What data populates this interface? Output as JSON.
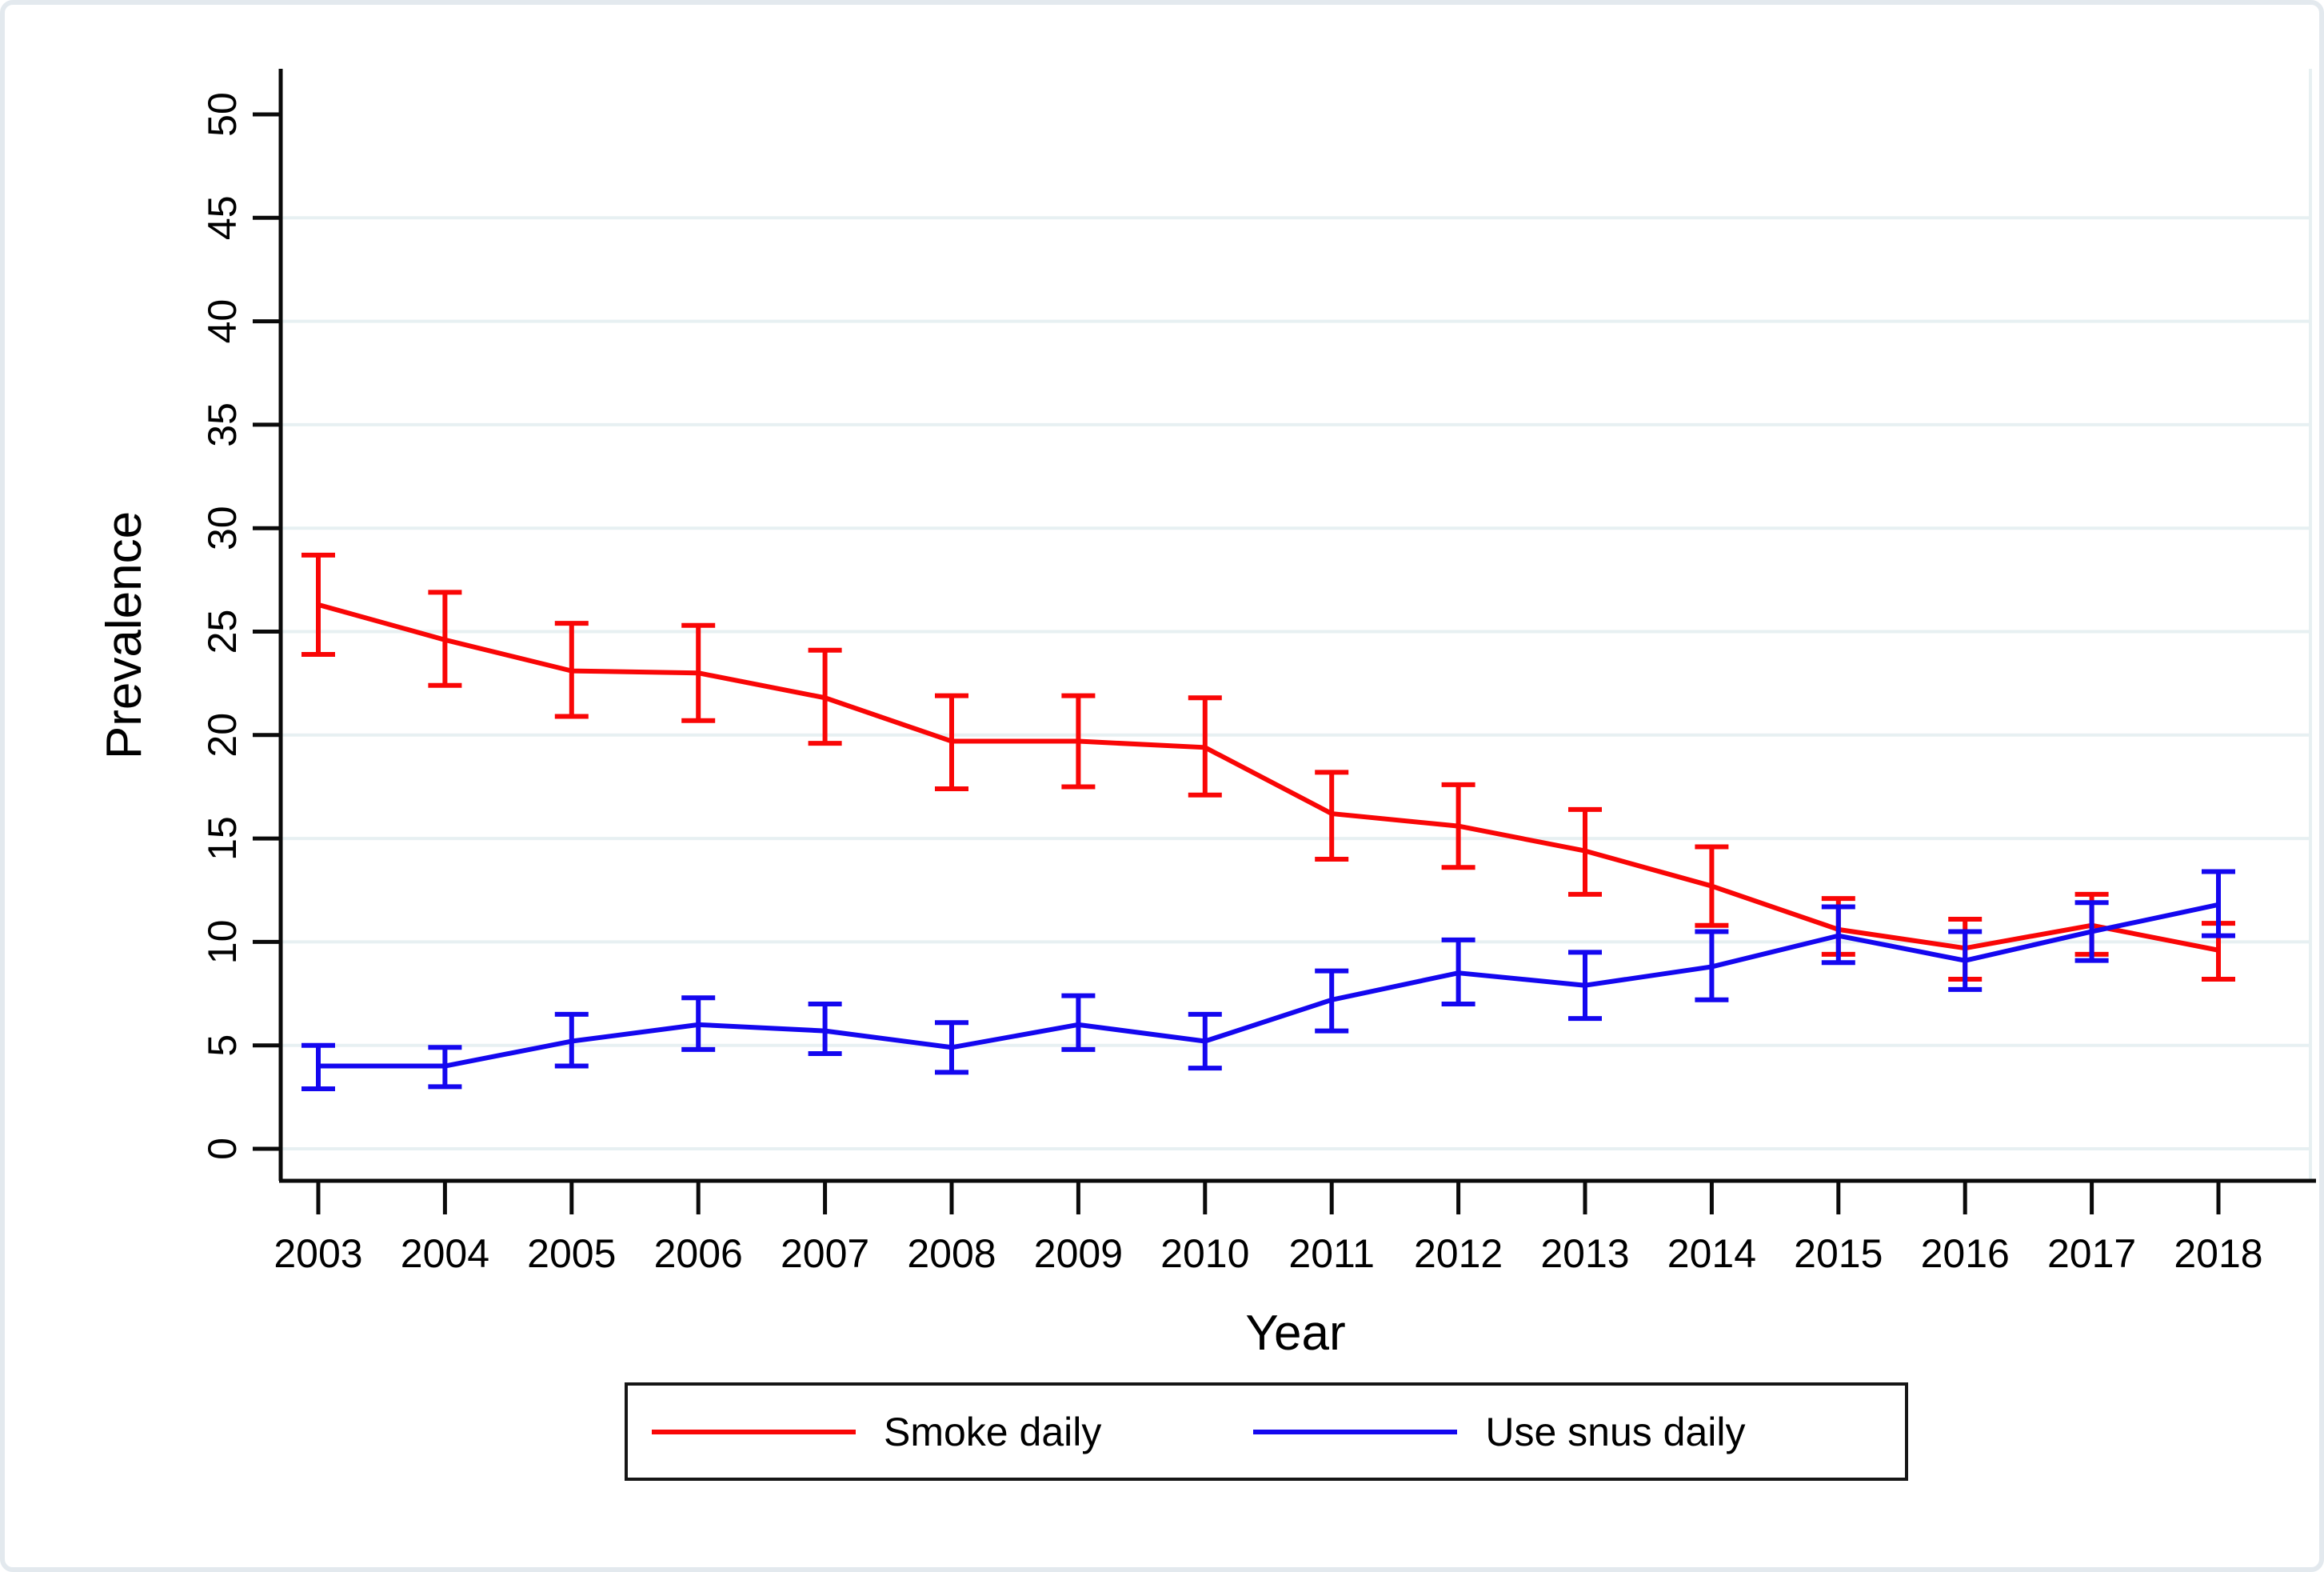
{
  "figure": {
    "y_axis_title": "Prevalence",
    "x_axis_title": "Year",
    "background_color": "#ffffff",
    "frame_color": "#e3e9ee",
    "axis_color": "#0a0a0a",
    "grid_color": "#e7f0f2",
    "text_color": "#000000"
  },
  "legend": {
    "items": [
      {
        "label": "Smoke daily",
        "color": "#f90606"
      },
      {
        "label": "Use snus daily",
        "color": "#1407ef"
      }
    ]
  },
  "chart_data": {
    "type": "line",
    "title": "",
    "xlabel": "Year",
    "ylabel": "Prevalence",
    "x": [
      2003,
      2004,
      2005,
      2006,
      2007,
      2008,
      2009,
      2010,
      2011,
      2012,
      2013,
      2014,
      2015,
      2016,
      2017,
      2018
    ],
    "ylim": [
      0,
      50
    ],
    "y_ticks": [
      0,
      5,
      10,
      15,
      20,
      25,
      30,
      35,
      40,
      45,
      50
    ],
    "grid_ticks": [
      0,
      5,
      10,
      15,
      20,
      25,
      30,
      35,
      40,
      45
    ],
    "grid": true,
    "error_bars": true,
    "legend_position": "bottom",
    "y_tick_labels_rotated": true,
    "series": [
      {
        "name": "Smoke daily",
        "color": "#f90606",
        "values": [
          26.3,
          24.6,
          23.1,
          23.0,
          21.8,
          19.7,
          19.7,
          19.4,
          16.2,
          15.6,
          14.4,
          12.7,
          10.6,
          9.7,
          10.8,
          9.6
        ],
        "ci_low": [
          23.9,
          22.4,
          20.9,
          20.7,
          19.6,
          17.4,
          17.5,
          17.1,
          14.0,
          13.6,
          12.3,
          10.8,
          9.4,
          8.2,
          9.4,
          8.2
        ],
        "ci_high": [
          28.7,
          26.9,
          25.4,
          25.3,
          24.1,
          21.9,
          21.9,
          21.8,
          18.2,
          17.6,
          16.4,
          14.6,
          12.1,
          11.1,
          12.3,
          10.9
        ]
      },
      {
        "name": "Use snus daily",
        "color": "#1407ef",
        "values": [
          4.0,
          4.0,
          5.2,
          6.0,
          5.7,
          4.9,
          6.0,
          5.2,
          7.2,
          8.5,
          7.9,
          8.8,
          10.3,
          9.1,
          10.5,
          11.8
        ],
        "ci_low": [
          2.9,
          3.0,
          4.0,
          4.8,
          4.6,
          3.7,
          4.8,
          3.9,
          5.7,
          7.0,
          6.3,
          7.2,
          9.0,
          7.7,
          9.1,
          10.3
        ],
        "ci_high": [
          5.0,
          4.9,
          6.5,
          7.3,
          7.0,
          6.1,
          7.4,
          6.5,
          8.6,
          10.1,
          9.5,
          10.5,
          11.7,
          10.5,
          11.9,
          13.4
        ]
      }
    ]
  }
}
